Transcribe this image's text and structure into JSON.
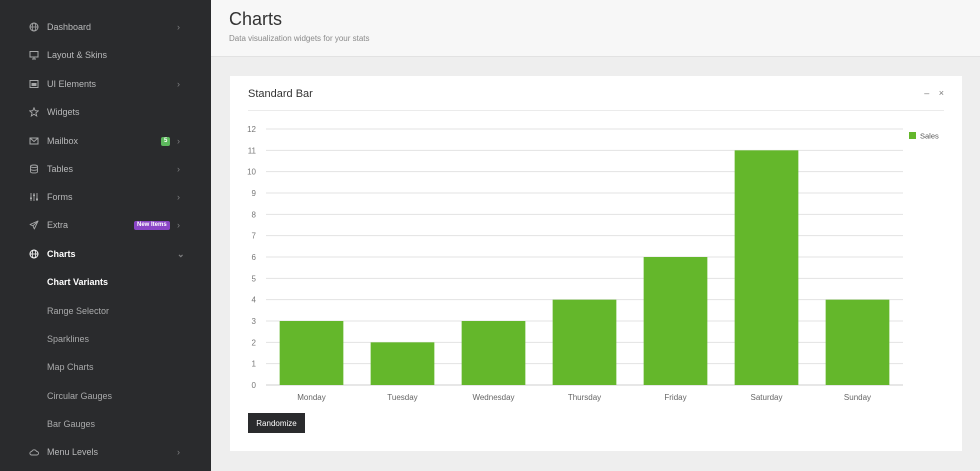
{
  "sidebar": {
    "items": [
      {
        "label": "Dashboard",
        "icon": "globe-icon",
        "chevron": true
      },
      {
        "label": "Layout & Skins",
        "icon": "monitor-icon",
        "chevron": false
      },
      {
        "label": "UI Elements",
        "icon": "window-icon",
        "chevron": true
      },
      {
        "label": "Widgets",
        "icon": "star-icon",
        "chevron": false
      },
      {
        "label": "Mailbox",
        "icon": "envelope-icon",
        "chevron": true,
        "badge": "5"
      },
      {
        "label": "Tables",
        "icon": "database-icon",
        "chevron": true
      },
      {
        "label": "Forms",
        "icon": "sliders-icon",
        "chevron": true
      },
      {
        "label": "Extra",
        "icon": "paper-plane-icon",
        "chevron": true,
        "badge": "New Items"
      },
      {
        "label": "Charts",
        "icon": "globe-icon",
        "chevron": true
      }
    ],
    "subitems": [
      "Chart Variants",
      "Range Selector",
      "Sparklines",
      "Map Charts",
      "Circular Gauges",
      "Bar Gauges"
    ],
    "last_item": {
      "label": "Menu Levels",
      "icon": "cloud-icon",
      "chevron": true
    },
    "colors": {
      "badge_green": "#5cb85c",
      "badge_purple": "#8a45c6"
    }
  },
  "header": {
    "title": "Charts",
    "subtitle": "Data visualization widgets for your stats"
  },
  "panel": {
    "title": "Standard Bar",
    "minimize": "–",
    "close": "×",
    "button_label": "Randomize"
  },
  "chart_data": {
    "type": "bar",
    "categories": [
      "Monday",
      "Tuesday",
      "Wednesday",
      "Thursday",
      "Friday",
      "Saturday",
      "Sunday"
    ],
    "series": [
      {
        "name": "Sales",
        "values": [
          3,
          2,
          3,
          4,
          6,
          11,
          4
        ],
        "color": "#64b72b"
      }
    ],
    "ylim": [
      0,
      12
    ],
    "yticks": [
      0,
      1,
      2,
      3,
      4,
      5,
      6,
      7,
      8,
      9,
      10,
      11,
      12
    ],
    "grid": true,
    "legend": "top-right"
  }
}
